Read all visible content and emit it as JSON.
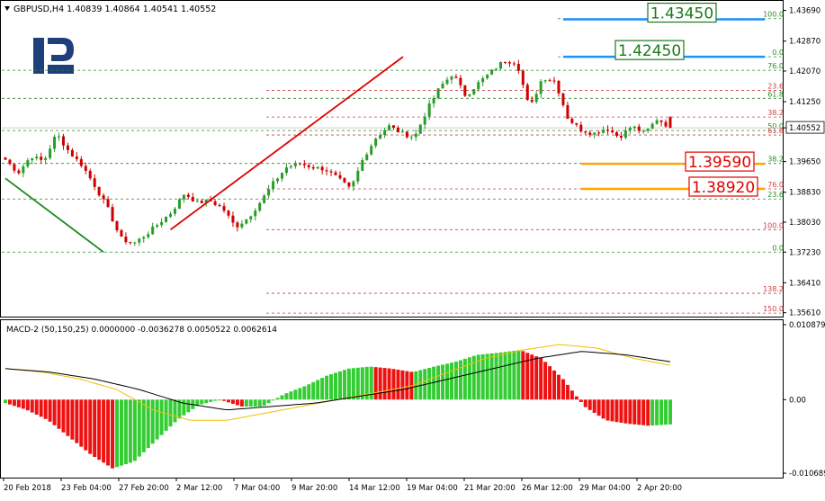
{
  "header": {
    "symbol_line": "GBPUSD,H4  1.40839 1.40864 1.40541 1.40552"
  },
  "current_price_label": "1.40552",
  "colors": {
    "bull": "#2a9c2a",
    "bear": "#d00000",
    "grid": "#2a8a2a",
    "fib": "#d04040",
    "callout_green": "#1a7a1a",
    "callout_red": "#e00000",
    "blue_level": "#1e90ff",
    "orange_level": "#ffa500",
    "macd_signal": "#f0c000",
    "macd_main": "#000000"
  },
  "price_axis": {
    "ticks": [
      "1.43690",
      "1.42870",
      "1.42070",
      "1.41250",
      "1.40552",
      "1.39650",
      "1.38830",
      "1.38030",
      "1.37230",
      "1.36410",
      "1.35610"
    ],
    "tick_values": [
      1.4369,
      1.4287,
      1.4207,
      1.4125,
      1.40552,
      1.3965,
      1.3883,
      1.3803,
      1.3723,
      1.3641,
      1.3561
    ],
    "range": [
      1.3553,
      1.4392
    ]
  },
  "macd_axis": {
    "title": "MACD-2 (50,150,25) 0.0000000 -0.0036278 0.0050522 0.0062614",
    "ticks": [
      "0.0108797",
      "0.00",
      "-0.0106897"
    ],
    "tick_values": [
      0.0108797,
      0.0,
      -0.0106897
    ],
    "range": [
      -0.0112,
      0.0114
    ]
  },
  "x_axis": {
    "labels": [
      "20 Feb 2018",
      "23 Feb 04:00",
      "27 Feb 20:00",
      "2 Mar 12:00",
      "7 Mar 04:00",
      "9 Mar 20:00",
      "14 Mar 12:00",
      "19 Mar 04:00",
      "21 Mar 20:00",
      "26 Mar 12:00",
      "29 Mar 04:00",
      "2 Apr 20:00"
    ]
  },
  "fib_levels_green": [
    {
      "label": "100.0",
      "value": 1.4347
    },
    {
      "label": "0.0",
      "value": 1.4245
    },
    {
      "label": "76.0",
      "value": 1.4209
    },
    {
      "label": "61.8",
      "value": 1.4134
    },
    {
      "label": "50.0",
      "value": 1.4048
    },
    {
      "label": "38.2",
      "value": 1.396
    },
    {
      "label": "23.6",
      "value": 1.3865
    },
    {
      "label": "0.0",
      "value": 1.3723
    }
  ],
  "fib_levels_red": [
    {
      "label": "23.6",
      "value": 1.4155
    },
    {
      "label": "38.2",
      "value": 1.4084
    },
    {
      "label": "61.8",
      "value": 1.4036
    },
    {
      "label": "76.0",
      "value": 1.3892
    },
    {
      "label": "100.0",
      "value": 1.3783
    },
    {
      "label": "138.2",
      "value": 1.3613
    },
    {
      "label": "150.0",
      "value": 1.356
    }
  ],
  "callouts": [
    {
      "label": "1.43450",
      "value": 1.4345,
      "style": "green",
      "line": "blue"
    },
    {
      "label": "1.42450",
      "value": 1.4245,
      "style": "green",
      "line": "blue"
    },
    {
      "label": "1.39590",
      "value": 1.3959,
      "style": "red",
      "line": "orange"
    },
    {
      "label": "1.38920",
      "value": 1.3892,
      "style": "red",
      "line": "orange"
    }
  ],
  "chart_data": {
    "type": "candlestick",
    "symbol": "GBPUSD",
    "timeframe": "H4",
    "ohlc_last": {
      "open": 1.40839,
      "high": 1.40864,
      "low": 1.40541,
      "close": 1.40552
    },
    "close_path_anchors": [
      1.397,
      1.3935,
      1.398,
      1.3965,
      1.404,
      1.399,
      1.3955,
      1.39,
      1.384,
      1.376,
      1.3745,
      1.377,
      1.38,
      1.383,
      1.388,
      1.3855,
      1.386,
      1.384,
      1.379,
      1.3815,
      1.386,
      1.391,
      1.395,
      1.396,
      1.395,
      1.3945,
      1.392,
      1.389,
      1.3975,
      1.403,
      1.406,
      1.404,
      1.403,
      1.4105,
      1.4165,
      1.42,
      1.414,
      1.4175,
      1.4205,
      1.4235,
      1.423,
      1.4105,
      1.419,
      1.418,
      1.408,
      1.405,
      1.404,
      1.4055,
      1.403,
      1.406,
      1.404,
      1.408,
      1.4055
    ],
    "trendlines": [
      {
        "color": "green",
        "from": {
          "bar": 0,
          "value": 1.392
        },
        "to": {
          "bar": 22,
          "value": 1.3723
        }
      },
      {
        "color": "red",
        "from": {
          "bar": 37,
          "value": 1.3783
        },
        "to": {
          "bar": 75,
          "value": 1.4245
        }
      }
    ],
    "macd_histogram_anchors": [
      -0.0005,
      -0.0015,
      -0.003,
      -0.0055,
      -0.008,
      -0.01,
      -0.009,
      -0.006,
      -0.003,
      -0.0008,
      0.0,
      -0.001,
      -0.001,
      0.0008,
      0.002,
      0.0035,
      0.0045,
      0.0048,
      0.0045,
      0.004,
      0.0048,
      0.0055,
      0.0065,
      0.0068,
      0.0072,
      0.006,
      0.003,
      -0.001,
      -0.003,
      -0.0035,
      -0.0038,
      -0.0036
    ],
    "macd_signal_anchors": [
      0.0045,
      0.004,
      0.003,
      0.0015,
      -0.0015,
      -0.003,
      -0.003,
      -0.002,
      -0.001,
      0.0,
      0.001,
      0.002,
      0.004,
      0.006,
      0.0072,
      0.008,
      0.0075,
      0.006,
      0.005
    ],
    "macd_main_anchors": [
      0.0045,
      0.004,
      0.003,
      0.0015,
      -0.0005,
      -0.0015,
      -0.001,
      -0.0005,
      0.0005,
      0.0015,
      0.003,
      0.0045,
      0.006,
      0.007,
      0.0065,
      0.0055
    ]
  }
}
